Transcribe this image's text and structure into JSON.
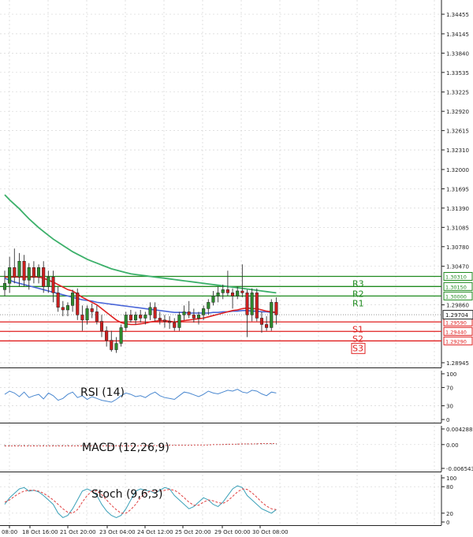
{
  "chart_data": {
    "type": "candlestick",
    "main": {
      "yaxis_ticks": [
        "1.34455",
        "1.34145",
        "1.33840",
        "1.33535",
        "1.33225",
        "1.32920",
        "1.32615",
        "1.32310",
        "1.32000",
        "1.31695",
        "1.31390",
        "1.31085",
        "1.30780",
        "1.30470",
        "1.29860",
        "1.28945"
      ],
      "ylim": [
        1.2887,
        1.3468
      ],
      "current_price": {
        "label": "1.29704",
        "value": 1.29704
      },
      "levels": [
        {
          "name": "R3",
          "label": "1.30310",
          "value": 1.3031,
          "type": "resistance"
        },
        {
          "name": "R2",
          "label": "1.30150",
          "value": 1.3015,
          "type": "resistance"
        },
        {
          "name": "R1",
          "label": "1.30000",
          "value": 1.3,
          "type": "resistance"
        },
        {
          "name": "S1",
          "label": "1.29590",
          "value": 1.2959,
          "type": "support"
        },
        {
          "name": "S2",
          "label": "1.29440",
          "value": 1.2944,
          "type": "support"
        },
        {
          "name": "S3",
          "label": "1.29290",
          "value": 1.2929,
          "type": "support"
        }
      ],
      "candles": [
        [
          1.301,
          1.304,
          1.3,
          1.302
        ],
        [
          1.302,
          1.3062,
          1.3005,
          1.3045
        ],
        [
          1.3045,
          1.3075,
          1.302,
          1.303
        ],
        [
          1.303,
          1.3068,
          1.3015,
          1.3055
        ],
        [
          1.3055,
          1.3065,
          1.3015,
          1.3025
        ],
        [
          1.3025,
          1.3052,
          1.301,
          1.3045
        ],
        [
          1.3045,
          1.3055,
          1.302,
          1.303
        ],
        [
          1.303,
          1.305,
          1.302,
          1.3045
        ],
        [
          1.3045,
          1.3055,
          1.3005,
          1.3015
        ],
        [
          1.3015,
          1.304,
          1.3005,
          1.303
        ],
        [
          1.303,
          1.304,
          1.299,
          1.3005
        ],
        [
          1.3005,
          1.3015,
          1.2975,
          1.2982
        ],
        [
          1.2982,
          1.2992,
          1.2968,
          1.2978
        ],
        [
          1.2978,
          1.299,
          1.2968,
          1.2985
        ],
        [
          1.2985,
          1.301,
          1.2975,
          1.3005
        ],
        [
          1.3005,
          1.3012,
          1.2962,
          1.297
        ],
        [
          1.297,
          1.2985,
          1.2945,
          1.2962
        ],
        [
          1.2962,
          1.2985,
          1.2955,
          1.298
        ],
        [
          1.298,
          1.2988,
          1.2965,
          1.2975
        ],
        [
          1.2975,
          1.2985,
          1.2955,
          1.296
        ],
        [
          1.296,
          1.297,
          1.2935,
          1.2945
        ],
        [
          1.2945,
          1.2952,
          1.292,
          1.293
        ],
        [
          1.293,
          1.2945,
          1.2912,
          1.2915
        ],
        [
          1.2915,
          1.2935,
          1.291,
          1.2925
        ],
        [
          1.2925,
          1.2955,
          1.292,
          1.295
        ],
        [
          1.295,
          1.2975,
          1.2945,
          1.297
        ],
        [
          1.297,
          1.2978,
          1.2958,
          1.2962
        ],
        [
          1.2962,
          1.2975,
          1.2955,
          1.297
        ],
        [
          1.297,
          1.2978,
          1.2958,
          1.2965
        ],
        [
          1.2965,
          1.2975,
          1.2955,
          1.297
        ],
        [
          1.297,
          1.299,
          1.2962,
          1.2982
        ],
        [
          1.2982,
          1.299,
          1.296,
          1.2965
        ],
        [
          1.2965,
          1.2975,
          1.2955,
          1.2962
        ],
        [
          1.2962,
          1.297,
          1.295,
          1.296
        ],
        [
          1.296,
          1.2968,
          1.2948,
          1.2958
        ],
        [
          1.2958,
          1.2965,
          1.2945,
          1.295
        ],
        [
          1.295,
          1.2975,
          1.2945,
          1.297
        ],
        [
          1.297,
          1.2985,
          1.2962,
          1.2975
        ],
        [
          1.2975,
          1.2992,
          1.2965,
          1.297
        ],
        [
          1.297,
          1.298,
          1.2958,
          1.2965
        ],
        [
          1.2965,
          1.2975,
          1.2955,
          1.297
        ],
        [
          1.297,
          1.2985,
          1.2962,
          1.298
        ],
        [
          1.298,
          1.2995,
          1.297,
          1.299
        ],
        [
          1.299,
          1.3008,
          1.2985,
          1.3
        ],
        [
          1.3,
          1.3015,
          1.299,
          1.3005
        ],
        [
          1.3005,
          1.3018,
          1.2995,
          1.301
        ],
        [
          1.301,
          1.304,
          1.3,
          1.3005
        ],
        [
          1.3005,
          1.3012,
          1.298,
          1.3
        ],
        [
          1.3,
          1.3015,
          1.2995,
          1.3008
        ],
        [
          1.3008,
          1.305,
          1.2998,
          1.3005
        ],
        [
          1.3005,
          1.301,
          1.2935,
          1.297
        ],
        [
          1.297,
          1.3012,
          1.296,
          1.3005
        ],
        [
          1.3005,
          1.3012,
          1.296,
          1.2965
        ],
        [
          1.2965,
          1.2975,
          1.2942,
          1.2955
        ],
        [
          1.2955,
          1.2968,
          1.2945,
          1.295
        ],
        [
          1.295,
          1.2995,
          1.2945,
          1.299
        ],
        [
          1.299,
          1.2998,
          1.2955,
          1.297
        ]
      ],
      "ma_blue": [
        1.3028,
        1.3025,
        1.3022,
        1.302,
        1.3018,
        1.3016,
        1.3014,
        1.3012,
        1.301,
        1.3008,
        1.3006,
        1.3004,
        1.3002,
        1.3,
        1.2998,
        1.2996,
        1.2994,
        1.2993,
        1.2992,
        1.299,
        1.2989,
        1.2988,
        1.2987,
        1.2986,
        1.2985,
        1.2984,
        1.2983,
        1.2982,
        1.2981,
        1.298,
        1.2979,
        1.2978,
        1.2977,
        1.2976,
        1.2975,
        1.2974,
        1.2974,
        1.2974,
        1.2973,
        1.2973,
        1.2973,
        1.2973,
        1.2973,
        1.2974,
        1.2974,
        1.2975,
        1.2975,
        1.2976,
        1.2976,
        1.2977,
        1.2977,
        1.2976,
        1.2976,
        1.2975,
        1.2975,
        1.2974,
        1.2974
      ],
      "ma_red": [
        1.303,
        1.303,
        1.303,
        1.303,
        1.303,
        1.303,
        1.303,
        1.303,
        1.3028,
        1.3025,
        1.3022,
        1.3018,
        1.3014,
        1.301,
        1.3008,
        1.3003,
        1.2998,
        1.2994,
        1.299,
        1.2986,
        1.298,
        1.2974,
        1.2968,
        1.2962,
        1.2958,
        1.2956,
        1.2955,
        1.2955,
        1.2956,
        1.2957,
        1.2959,
        1.296,
        1.2961,
        1.2961,
        1.296,
        1.2959,
        1.296,
        1.2961,
        1.2962,
        1.2963,
        1.2964,
        1.2965,
        1.2967,
        1.2969,
        1.2971,
        1.2973,
        1.2975,
        1.2977,
        1.2978,
        1.298,
        1.2981,
        1.298,
        1.298,
        1.2978,
        1.2976,
        1.2975,
        1.2974
      ],
      "ma_green": [
        1.316,
        1.3152,
        1.3145,
        1.3138,
        1.313,
        1.3122,
        1.3115,
        1.3108,
        1.3102,
        1.3096,
        1.309,
        1.3085,
        1.308,
        1.3075,
        1.307,
        1.3066,
        1.3062,
        1.3058,
        1.3055,
        1.3052,
        1.3049,
        1.3046,
        1.3043,
        1.3041,
        1.3039,
        1.3037,
        1.3035,
        1.3034,
        1.3033,
        1.3032,
        1.3031,
        1.303,
        1.3029,
        1.3028,
        1.3027,
        1.3026,
        1.3025,
        1.3024,
        1.3023,
        1.3022,
        1.3021,
        1.302,
        1.3019,
        1.3018,
        1.3017,
        1.3016,
        1.3015,
        1.3014,
        1.3013,
        1.3012,
        1.3011,
        1.301,
        1.3009,
        1.3008,
        1.3007,
        1.3006,
        1.3005
      ]
    },
    "rsi": {
      "title": "RSI (14)",
      "yaxis_ticks": [
        "100",
        "70",
        "30",
        "0"
      ],
      "ylim": [
        0,
        100
      ],
      "values": [
        55,
        62,
        58,
        50,
        60,
        48,
        52,
        55,
        45,
        58,
        52,
        42,
        46,
        55,
        60,
        48,
        52,
        44,
        50,
        46,
        42,
        40,
        38,
        44,
        52,
        58,
        55,
        50,
        52,
        48,
        55,
        60,
        52,
        48,
        46,
        44,
        52,
        60,
        58,
        54,
        50,
        55,
        62,
        58,
        56,
        60,
        64,
        62,
        66,
        60,
        58,
        64,
        62,
        56,
        52,
        60,
        58
      ]
    },
    "macd": {
      "title": "MACD (12,26,9)",
      "yaxis_ticks": [
        "0.004288",
        "0.00",
        "-0.006543"
      ],
      "ylim": [
        -0.006543,
        0.004288
      ],
      "values": [
        -0.0005,
        -0.0005,
        -0.0004,
        -0.0004,
        -0.0004,
        -0.0004,
        -0.0004,
        -0.0003,
        -0.0003,
        -0.0003,
        -0.0004,
        -0.0004,
        -0.0004,
        -0.0004,
        -0.0003,
        -0.0003,
        -0.0004,
        -0.0004,
        -0.0004,
        -0.0004,
        -0.0004,
        -0.0005,
        -0.0005,
        -0.0005,
        -0.0004,
        -0.0004,
        -0.0004,
        -0.0003,
        -0.0003,
        -0.0003,
        -0.0003,
        -0.0002,
        -0.0002,
        -0.0002,
        -0.0002,
        -0.0002,
        -0.0001,
        -0.0001,
        -0.0001,
        0.0,
        0.0,
        0.0,
        0.0001,
        0.0001,
        0.0001,
        0.0002,
        0.0002,
        0.0002,
        0.0003,
        0.0003,
        0.0003,
        0.0003,
        0.0004,
        0.0004,
        0.0004,
        0.0004,
        0.0004
      ],
      "signal": [
        -0.0004,
        -0.0004,
        -0.0004,
        -0.0004,
        -0.0004,
        -0.0004,
        -0.0004,
        -0.0004,
        -0.0004,
        -0.0004,
        -0.0004,
        -0.0004,
        -0.0004,
        -0.0004,
        -0.0004,
        -0.0004,
        -0.0004,
        -0.0004,
        -0.0004,
        -0.0004,
        -0.0004,
        -0.0004,
        -0.0004,
        -0.0004,
        -0.0004,
        -0.0004,
        -0.0004,
        -0.0004,
        -0.0003,
        -0.0003,
        -0.0003,
        -0.0003,
        -0.0003,
        -0.0003,
        -0.0002,
        -0.0002,
        -0.0002,
        -0.0002,
        -0.0002,
        -0.0001,
        -0.0001,
        -0.0001,
        -0.0001,
        0.0,
        0.0,
        0.0,
        0.0001,
        0.0001,
        0.0001,
        0.0002,
        0.0002,
        0.0002,
        0.0002,
        0.0003,
        0.0003,
        0.0003,
        0.0003
      ]
    },
    "stoch": {
      "title": "Stoch (9,6,3)",
      "yaxis_ticks": [
        "100",
        "80",
        "20",
        "0"
      ],
      "ylim": [
        0,
        100
      ],
      "k": [
        40,
        55,
        65,
        75,
        78,
        70,
        72,
        68,
        60,
        50,
        40,
        20,
        10,
        15,
        30,
        50,
        70,
        75,
        70,
        60,
        40,
        25,
        15,
        10,
        15,
        30,
        50,
        70,
        75,
        72,
        70,
        65,
        72,
        78,
        75,
        60,
        50,
        40,
        30,
        35,
        45,
        55,
        50,
        40,
        35,
        45,
        60,
        75,
        82,
        78,
        60,
        50,
        40,
        30,
        25,
        20,
        28
      ],
      "d": [
        45,
        50,
        58,
        65,
        70,
        72,
        72,
        70,
        65,
        58,
        50,
        40,
        30,
        22,
        20,
        28,
        45,
        60,
        70,
        70,
        62,
        50,
        38,
        28,
        20,
        20,
        28,
        40,
        55,
        65,
        70,
        70,
        70,
        72,
        74,
        72,
        65,
        55,
        45,
        38,
        38,
        45,
        50,
        48,
        44,
        42,
        48,
        58,
        68,
        75,
        74,
        66,
        56,
        45,
        36,
        30,
        28
      ]
    },
    "x_tick_labels": [
      "08:00",
      "18 Oct 16:00",
      "21 Oct 20:00",
      "23 Oct 04:00",
      "24 Oct 12:00",
      "25 Oct 20:00",
      "29 Oct 00:00",
      "30 Oct 08:00"
    ]
  },
  "colors": {
    "bull": "#2e8b2e",
    "bear": "#cc1f1f",
    "ma_blue": "#4a66d8",
    "ma_red": "#e02020",
    "ma_green": "#3cb06a",
    "resistance": "#1f8a1f",
    "support": "#e02020",
    "rsi": "#4a88d0",
    "macd": "#888888",
    "macd_signal": "#cc3333",
    "stoch_k": "#3aa0b8",
    "stoch_d": "#e04040"
  }
}
